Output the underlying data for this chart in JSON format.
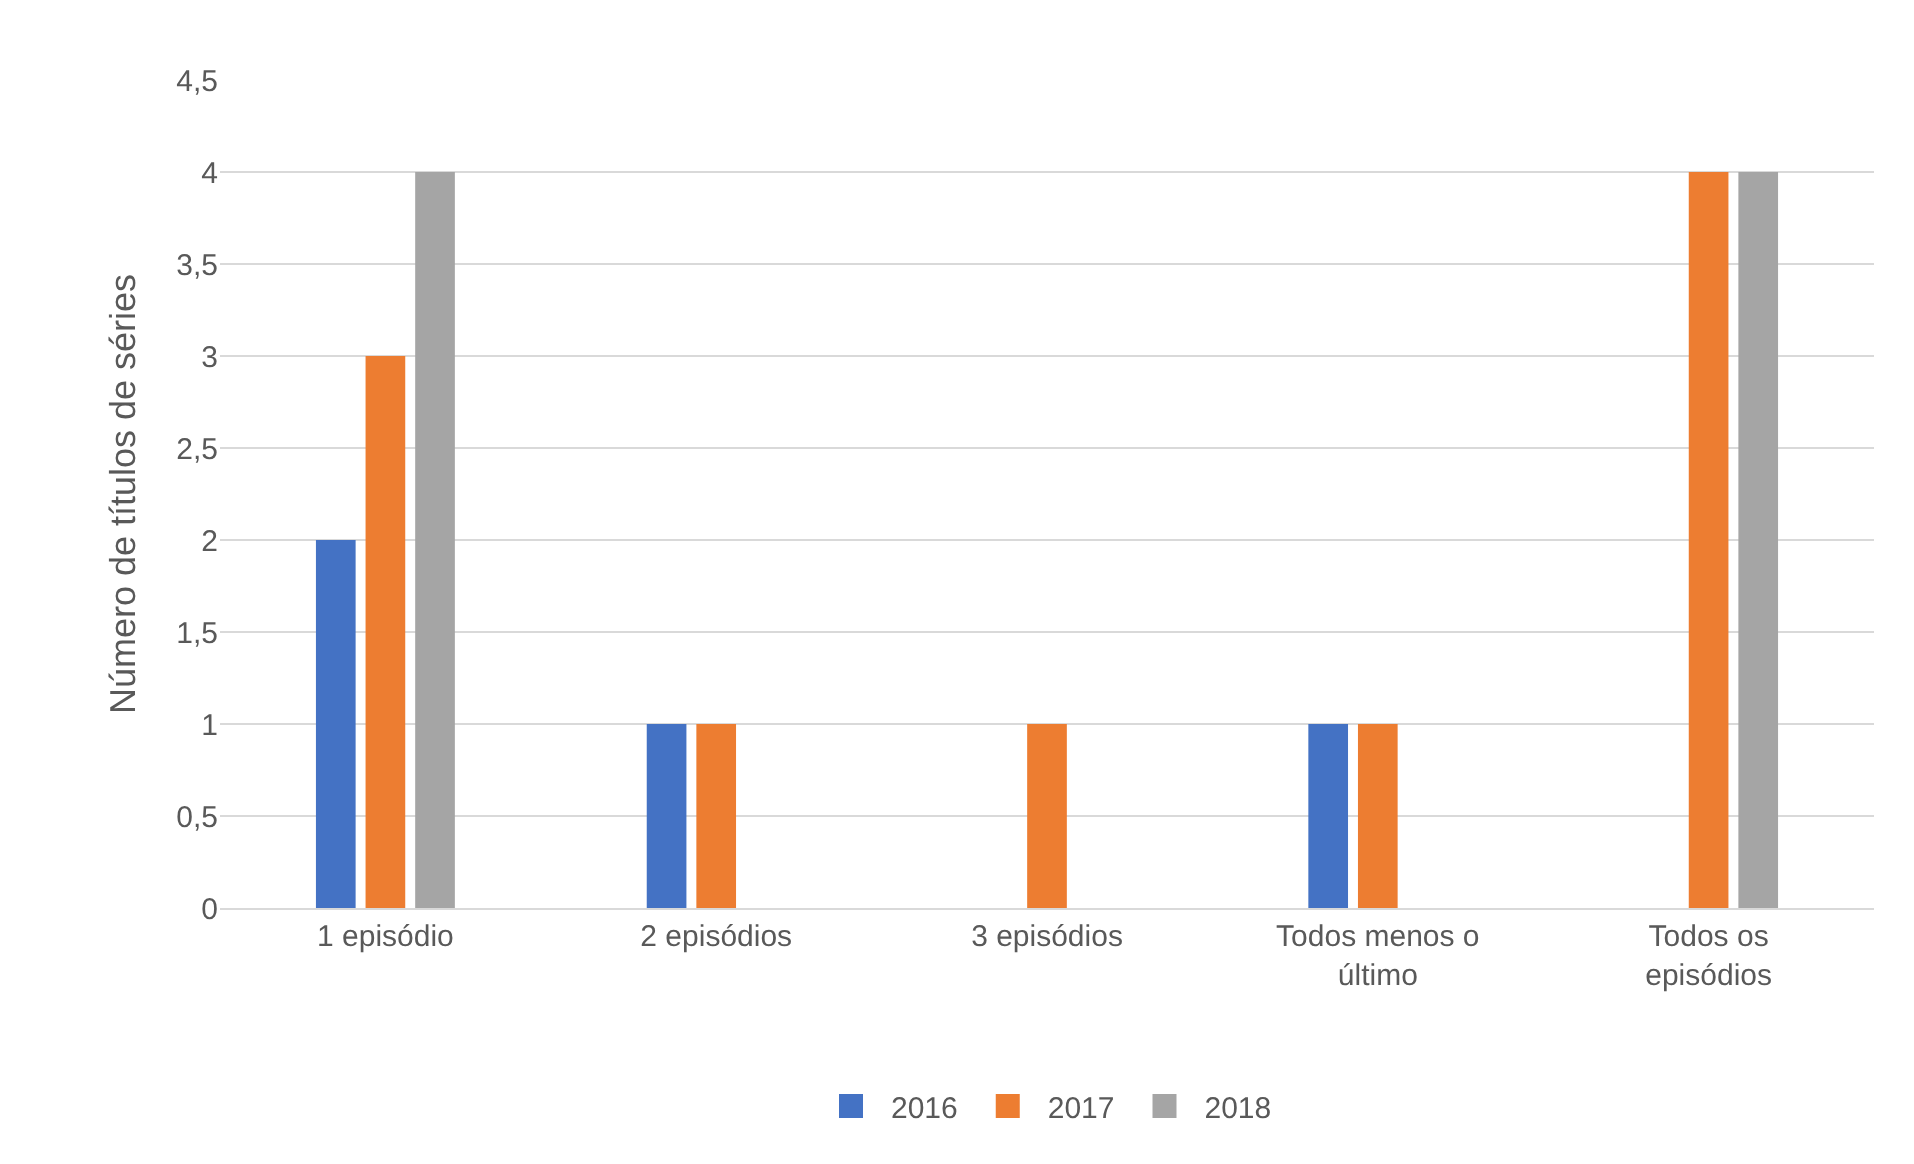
{
  "chart_data": {
    "type": "bar",
    "categories": [
      "1 episódio",
      "2 episódios",
      "3 episódios",
      "Todos menos o último",
      "Todos os episódios"
    ],
    "series": [
      {
        "name": "2016",
        "color": "#4472c4",
        "values": [
          2,
          1,
          0,
          1,
          0
        ]
      },
      {
        "name": "2017",
        "color": "#ed7d31",
        "values": [
          3,
          1,
          1,
          1,
          4
        ]
      },
      {
        "name": "2018",
        "color": "#a5a5a5",
        "values": [
          4,
          0,
          0,
          0,
          4
        ]
      }
    ],
    "ylabel": "Número de títulos de séries",
    "ylim": [
      0,
      4.5
    ],
    "yticks": [
      0,
      {
        "value": 0.5,
        "label": "0,5"
      },
      1,
      {
        "value": 1.5,
        "label": "1,5"
      },
      2,
      {
        "value": 2.5,
        "label": "2,5"
      },
      3,
      {
        "value": 3.5,
        "label": "3,5"
      },
      4,
      {
        "value": 4.5,
        "label": "4,5"
      }
    ],
    "grid": "y",
    "legend": "bottom"
  }
}
